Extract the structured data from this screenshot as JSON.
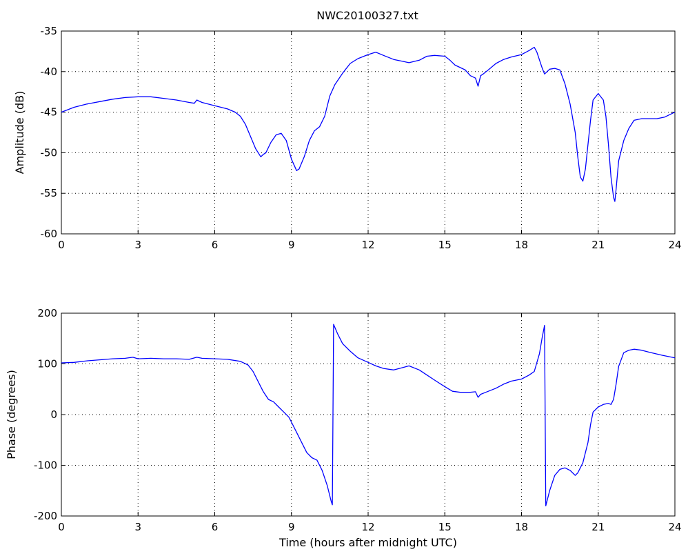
{
  "title": "NWC20100327.txt",
  "chart_data": [
    {
      "type": "line",
      "ylabel": "Amplitude (dB)",
      "xlabel": "",
      "xlim": [
        0,
        24
      ],
      "ylim": [
        -60,
        -35
      ],
      "xticks": [
        0,
        3,
        6,
        9,
        12,
        15,
        18,
        21,
        24
      ],
      "yticks": [
        -60,
        -55,
        -50,
        -45,
        -40,
        -35
      ],
      "grid": true,
      "line_color": "#0000ff",
      "series": [
        {
          "x": [
            0,
            0.5,
            1,
            1.5,
            2,
            2.5,
            3,
            3.5,
            4,
            4.5,
            5,
            5.2,
            5.3,
            5.5,
            6,
            6.5,
            6.8,
            7,
            7.2,
            7.4,
            7.6,
            7.8,
            7.9,
            8,
            8.2,
            8.4,
            8.6,
            8.8,
            9,
            9.2,
            9.3,
            9.5,
            9.7,
            9.9,
            10.1,
            10.3,
            10.5,
            10.7,
            11,
            11.3,
            11.6,
            12,
            12.3,
            12.6,
            13,
            13.3,
            13.6,
            14,
            14.3,
            14.6,
            15,
            15.2,
            15.4,
            15.6,
            15.8,
            16,
            16.2,
            16.3,
            16.4,
            16.5,
            16.7,
            17,
            17.3,
            17.6,
            18,
            18.3,
            18.5,
            18.6,
            18.8,
            18.9,
            19.1,
            19.3,
            19.5,
            19.7,
            19.9,
            20.1,
            20.2,
            20.3,
            20.4,
            20.5,
            20.6,
            20.7,
            20.8,
            21,
            21.2,
            21.3,
            21.4,
            21.5,
            21.6,
            21.65,
            21.7,
            21.8,
            22,
            22.2,
            22.4,
            22.7,
            23,
            23.3,
            23.6,
            24
          ],
          "values": [
            -45,
            -44.4,
            -44,
            -43.7,
            -43.4,
            -43.2,
            -43.1,
            -43.1,
            -43.3,
            -43.5,
            -43.8,
            -43.9,
            -43.5,
            -43.8,
            -44.2,
            -44.6,
            -45,
            -45.5,
            -46.5,
            -48,
            -49.5,
            -50.5,
            -50.2,
            -50,
            -48.7,
            -47.8,
            -47.6,
            -48.5,
            -50.8,
            -52.2,
            -52,
            -50.5,
            -48.5,
            -47.3,
            -46.8,
            -45.5,
            -43,
            -41.6,
            -40.2,
            -39,
            -38.4,
            -37.9,
            -37.6,
            -38,
            -38.5,
            -38.7,
            -38.9,
            -38.6,
            -38.1,
            -38,
            -38.1,
            -38.6,
            -39.2,
            -39.5,
            -39.8,
            -40.5,
            -40.8,
            -41.8,
            -40.5,
            -40.3,
            -39.8,
            -39,
            -38.5,
            -38.2,
            -37.9,
            -37.4,
            -37,
            -37.6,
            -39.5,
            -40.3,
            -39.7,
            -39.6,
            -39.8,
            -41.5,
            -44,
            -47.5,
            -50.5,
            -53,
            -53.5,
            -52,
            -49,
            -46,
            -43.5,
            -42.7,
            -43.5,
            -45.5,
            -49,
            -53,
            -55.5,
            -56,
            -54.5,
            -51,
            -48.5,
            -47,
            -46,
            -45.8,
            -45.8,
            -45.8,
            -45.6,
            -45
          ]
        }
      ]
    },
    {
      "type": "line",
      "ylabel": "Phase (degrees)",
      "xlabel": "Time (hours after midnight UTC)",
      "xlim": [
        0,
        24
      ],
      "ylim": [
        -200,
        200
      ],
      "xticks": [
        0,
        3,
        6,
        9,
        12,
        15,
        18,
        21,
        24
      ],
      "yticks": [
        -200,
        -100,
        0,
        100,
        200
      ],
      "grid": true,
      "line_color": "#0000ff",
      "series": [
        {
          "x": [
            0,
            0.5,
            1,
            1.5,
            2,
            2.5,
            2.8,
            3,
            3.5,
            4,
            4.5,
            5,
            5.3,
            5.5,
            6,
            6.5,
            7,
            7.3,
            7.5,
            7.7,
            7.9,
            8.1,
            8.3,
            8.5,
            8.7,
            8.9,
            9,
            9.2,
            9.4,
            9.6,
            9.8,
            10,
            10.2,
            10.4,
            10.55,
            10.6,
            10.65,
            10.8,
            11,
            11.3,
            11.6,
            12,
            12.3,
            12.6,
            13,
            13.3,
            13.6,
            14,
            14.3,
            14.6,
            15,
            15.3,
            15.6,
            16,
            16.2,
            16.3,
            16.4,
            16.6,
            17,
            17.3,
            17.6,
            18,
            18.3,
            18.5,
            18.7,
            18.8,
            18.9,
            18.95,
            19.1,
            19.3,
            19.5,
            19.7,
            19.9,
            20.1,
            20.2,
            20.4,
            20.6,
            20.7,
            20.8,
            21,
            21.2,
            21.4,
            21.5,
            21.6,
            21.7,
            21.8,
            22,
            22.2,
            22.4,
            22.7,
            23,
            23.5,
            24
          ],
          "values": [
            102,
            103,
            106,
            108,
            110,
            111,
            113,
            110,
            111,
            110,
            110,
            109,
            113,
            111,
            110,
            109,
            105,
            98,
            85,
            65,
            45,
            30,
            25,
            15,
            5,
            -5,
            -15,
            -35,
            -55,
            -75,
            -85,
            -90,
            -110,
            -140,
            -170,
            -178,
            178,
            160,
            140,
            125,
            112,
            103,
            96,
            91,
            88,
            92,
            96,
            88,
            78,
            68,
            55,
            46,
            44,
            44,
            45,
            34,
            40,
            44,
            52,
            60,
            66,
            70,
            78,
            85,
            120,
            150,
            176,
            -180,
            -150,
            -120,
            -108,
            -105,
            -110,
            -120,
            -115,
            -95,
            -55,
            -20,
            5,
            15,
            20,
            22,
            20,
            30,
            60,
            95,
            122,
            127,
            129,
            127,
            123,
            117,
            112
          ]
        }
      ]
    }
  ]
}
